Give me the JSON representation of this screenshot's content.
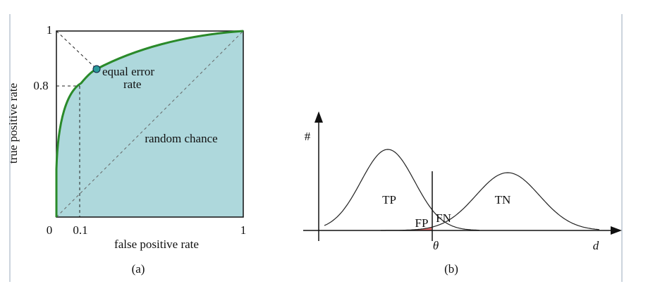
{
  "panel_a": {
    "y_axis_label": "true positive rate",
    "x_axis_label": "false positive rate",
    "y_tick_labels": [
      "1",
      "0.8"
    ],
    "x_tick_labels": [
      "0",
      "0.1",
      "1"
    ],
    "annotations": [
      "equal error",
      "rate",
      "random chance"
    ],
    "caption": "(a)"
  },
  "panel_b": {
    "y_axis_label": "#",
    "x_axis_label": "d",
    "threshold_label": "θ",
    "region_labels": [
      "TP",
      "FN",
      "FP",
      "TN"
    ],
    "caption": "(b)"
  }
}
